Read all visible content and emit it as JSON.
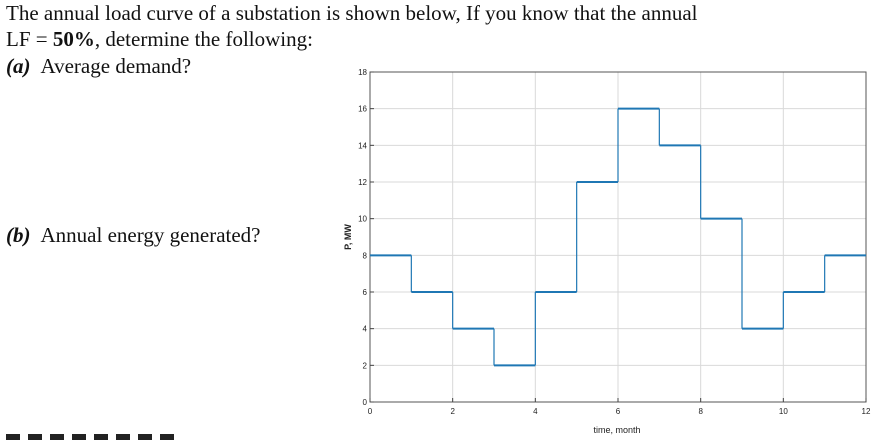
{
  "question": {
    "line1": "The annual load curve of a substation is shown below, If you know that the annual",
    "lf_prefix": "LF = ",
    "lf_value": "50%",
    "lf_suffix": ", determine the following:",
    "part_a_tag": "(a)",
    "part_a_text": "Average demand?",
    "part_b_tag": "(b)",
    "part_b_text": "Annual energy generated?"
  },
  "chart_data": {
    "type": "line",
    "subtype": "step",
    "title": "",
    "xlabel": "time, month",
    "ylabel": "P, MW",
    "xlim": [
      0,
      12
    ],
    "ylim": [
      0,
      18
    ],
    "xticks": [
      0,
      2,
      4,
      6,
      8,
      10,
      12
    ],
    "yticks": [
      0,
      2,
      4,
      6,
      8,
      10,
      12,
      14,
      16,
      18
    ],
    "grid": true,
    "line_color": "#1f77b4",
    "series": [
      {
        "x": [
          0,
          1,
          2,
          3,
          4,
          5,
          6,
          7,
          8,
          9,
          10,
          11,
          12
        ],
        "values": [
          8,
          6,
          4,
          2,
          6,
          12,
          16,
          14,
          10,
          4,
          6,
          8,
          8
        ]
      }
    ]
  }
}
